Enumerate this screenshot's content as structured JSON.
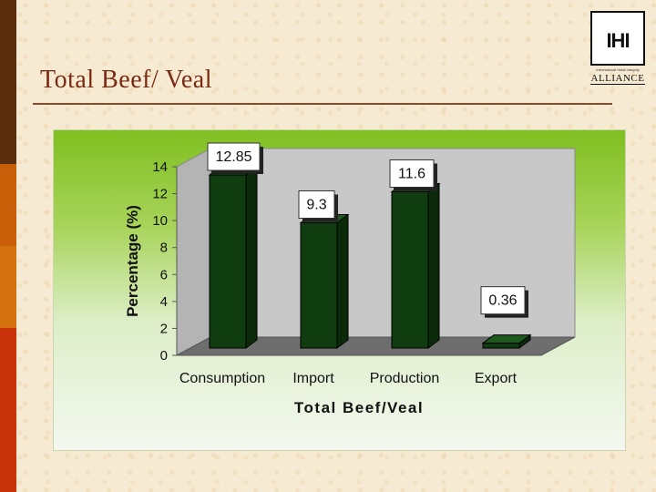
{
  "slide": {
    "title": "Total Beef/ Veal"
  },
  "logo": {
    "mark": "IHI",
    "small_text": "International Halal Integrity",
    "word": "ALLIANCE"
  },
  "colors": {
    "title": "#7a2a12",
    "bar": "#0f3d0f",
    "left_bar": [
      "#5a2e0c",
      "#c85f08",
      "#d47210",
      "#c9330a"
    ]
  },
  "chart_data": {
    "type": "bar",
    "title": "",
    "categories": [
      "Consumption",
      "Import",
      "Production",
      "Export"
    ],
    "values": [
      12.85,
      9.3,
      11.6,
      0.36
    ],
    "data_labels": [
      "12.85",
      "9.3",
      "11.6",
      "0.36"
    ],
    "xlabel": "Total Beef/Veal",
    "ylabel": "Percentage (%)",
    "ylim": [
      0,
      14
    ],
    "yticks": [
      0,
      2,
      4,
      6,
      8,
      10,
      12,
      14
    ],
    "grid": false,
    "legend": "none",
    "style": "3d"
  }
}
